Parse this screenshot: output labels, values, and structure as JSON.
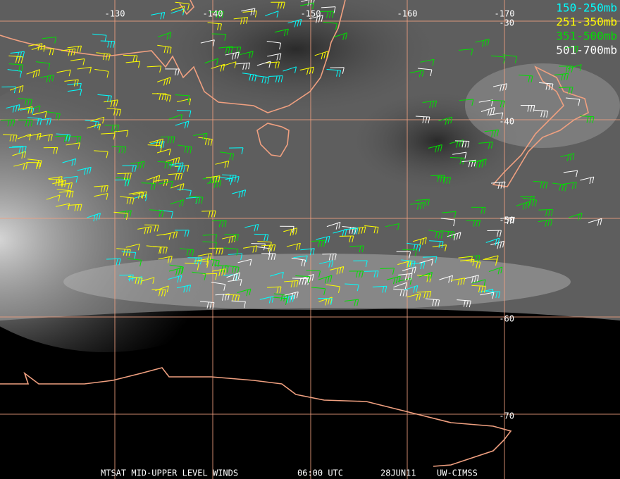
{
  "map": {
    "longitude_labels": [
      "-130",
      "-140",
      "-150",
      "-160",
      "-170"
    ],
    "latitude_labels": [
      "-30",
      "-40",
      "-50",
      "-60",
      "-70"
    ],
    "legend": [
      {
        "label": "150-250mb",
        "color": "#00ffff"
      },
      {
        "label": "251-350mb",
        "color": "#ffff00"
      },
      {
        "label": "351-500mb",
        "color": "#00e000"
      },
      {
        "label": "501-700mb",
        "color": "#ffffff"
      }
    ],
    "footer": {
      "product": "MTSAT MID-UPPER LEVEL WINDS",
      "time": "06:00 UTC",
      "date": "28JUN11",
      "source": "UW-CIMSS"
    }
  }
}
